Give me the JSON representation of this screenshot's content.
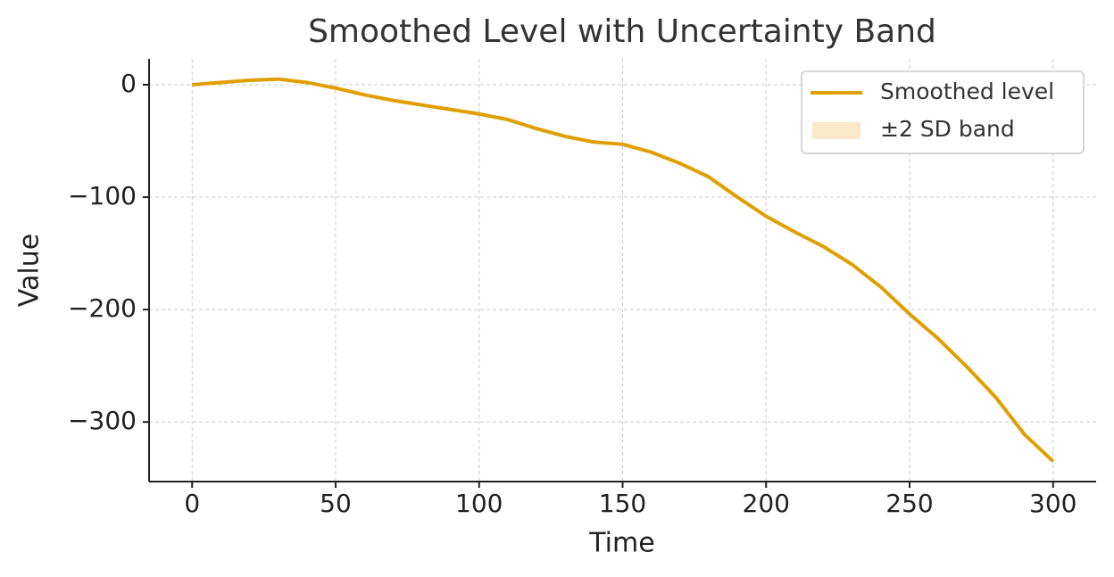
{
  "chart_data": {
    "type": "line",
    "title": "Smoothed Level with Uncertainty Band",
    "x_label": "Time",
    "y_label": "Value",
    "x": [
      0,
      10,
      20,
      30,
      40,
      50,
      60,
      70,
      80,
      90,
      100,
      110,
      120,
      130,
      140,
      150,
      160,
      170,
      180,
      190,
      200,
      210,
      220,
      230,
      240,
      250,
      260,
      270,
      280,
      290,
      300
    ],
    "series": [
      {
        "name": "Smoothed level",
        "color": "#e09f00",
        "values": [
          0,
          2,
          4,
          5,
          2,
          -3,
          -9,
          -14,
          -18,
          -22,
          -26,
          -31,
          -39,
          -46,
          -51,
          -53,
          -60,
          -70,
          -82,
          -100,
          -117,
          -131,
          -144,
          -160,
          -180,
          -204,
          -226,
          -251,
          -278,
          -311,
          -335
        ]
      },
      {
        "name": "±2 SD band",
        "color": "#fae8c8",
        "kind": "band"
      }
    ],
    "xlim": [
      -15,
      315
    ],
    "ylim": [
      -353,
      23
    ],
    "xticks": [
      0,
      50,
      100,
      150,
      200,
      250,
      300
    ],
    "yticks": [
      0,
      {
        "value": -100,
        "label": "−100"
      },
      {
        "value": -200,
        "label": "−200"
      },
      {
        "value": -300,
        "label": "−300"
      }
    ],
    "grid": true,
    "legend": "upper right"
  }
}
